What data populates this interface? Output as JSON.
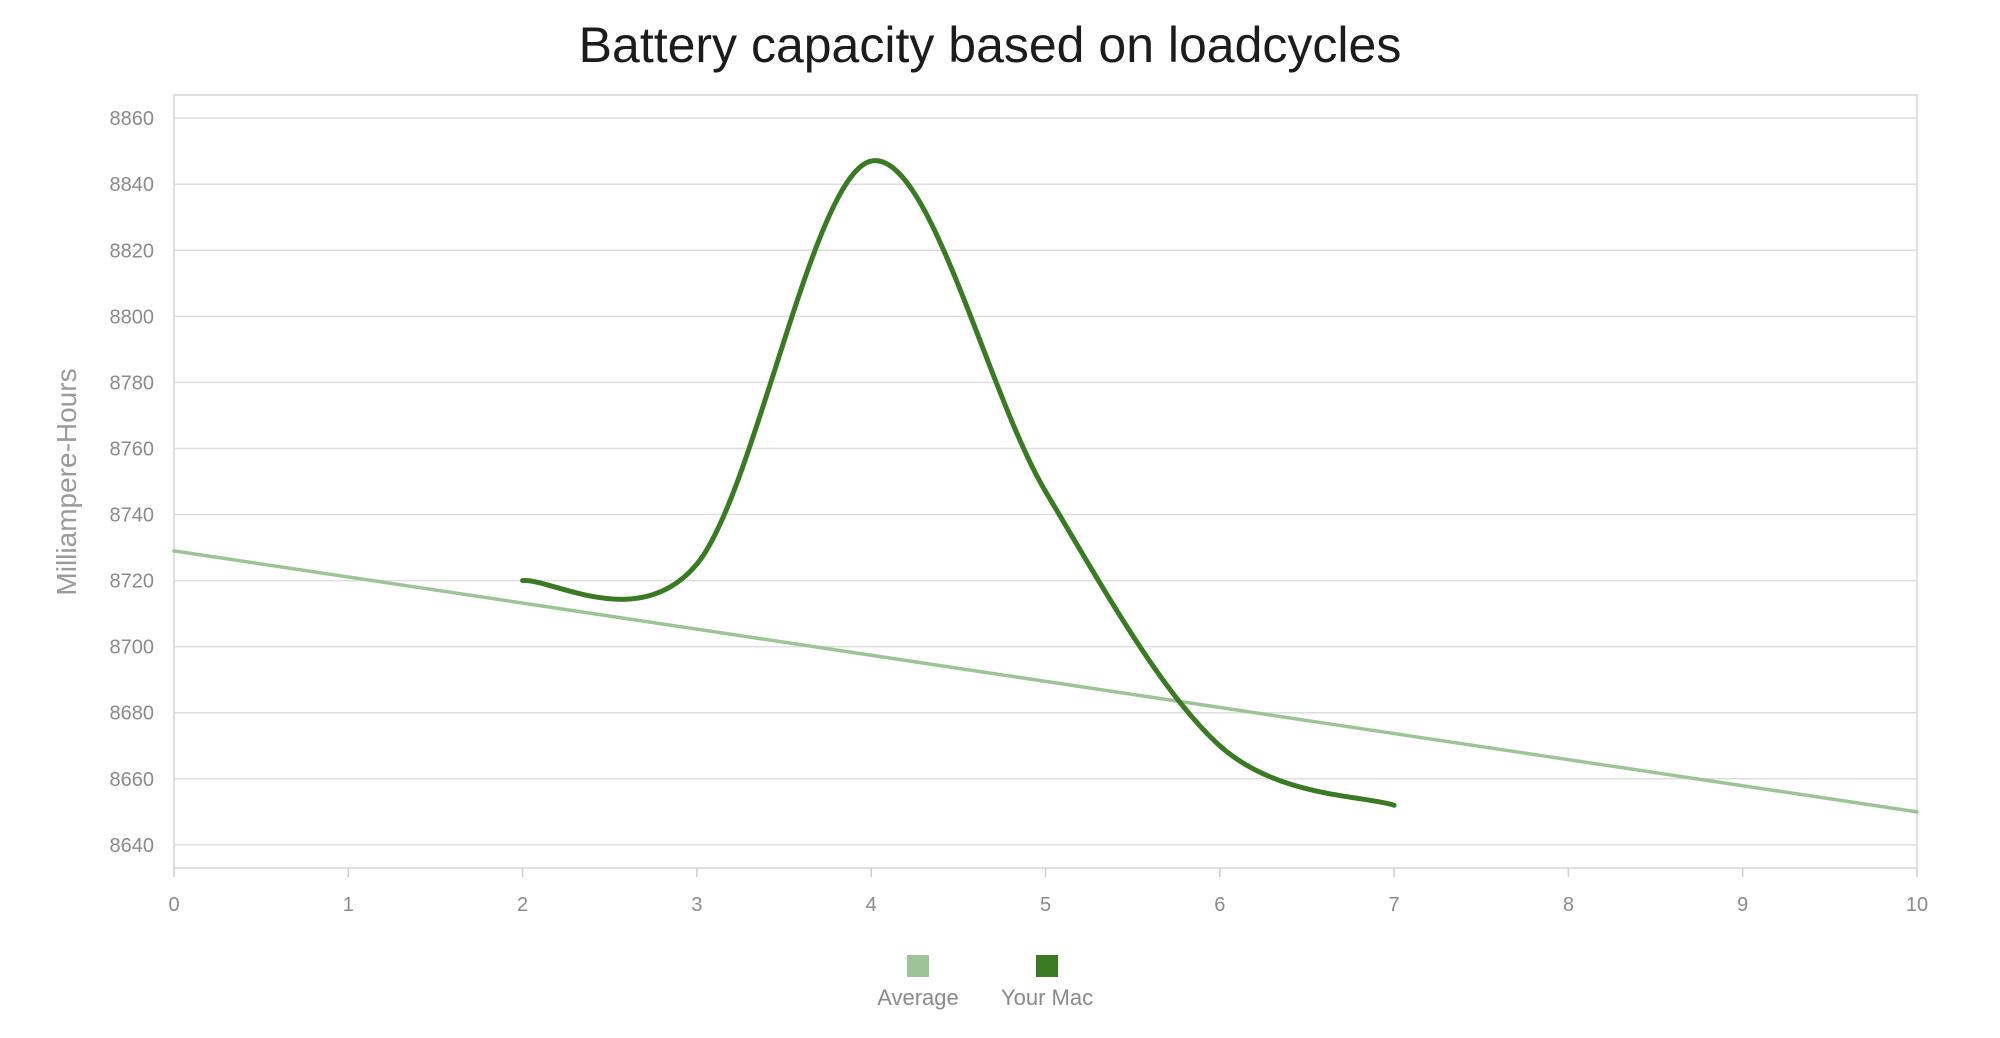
{
  "chart_data": {
    "type": "line",
    "title": "Battery capacity based on loadcycles",
    "xlabel": "",
    "ylabel": "Milliampere-Hours",
    "xlim": [
      0,
      10
    ],
    "ylim": [
      8633,
      8867
    ],
    "x_ticks": [
      0,
      1,
      2,
      3,
      4,
      5,
      6,
      7,
      8,
      9,
      10
    ],
    "y_ticks": [
      8640,
      8660,
      8680,
      8700,
      8720,
      8740,
      8760,
      8780,
      8800,
      8820,
      8840,
      8860
    ],
    "grid": true,
    "legend_position": "bottom-center",
    "series": [
      {
        "name": "Average",
        "color": "#9cc496",
        "smooth": false,
        "points": [
          [
            0,
            8729
          ],
          [
            10,
            8650
          ]
        ]
      },
      {
        "name": "Your Mac",
        "color": "#3a7a22",
        "smooth": true,
        "points": [
          [
            2,
            8720
          ],
          [
            3,
            8725
          ],
          [
            4,
            8847
          ],
          [
            5,
            8747
          ],
          [
            6,
            8670
          ],
          [
            7,
            8652
          ]
        ]
      }
    ]
  }
}
